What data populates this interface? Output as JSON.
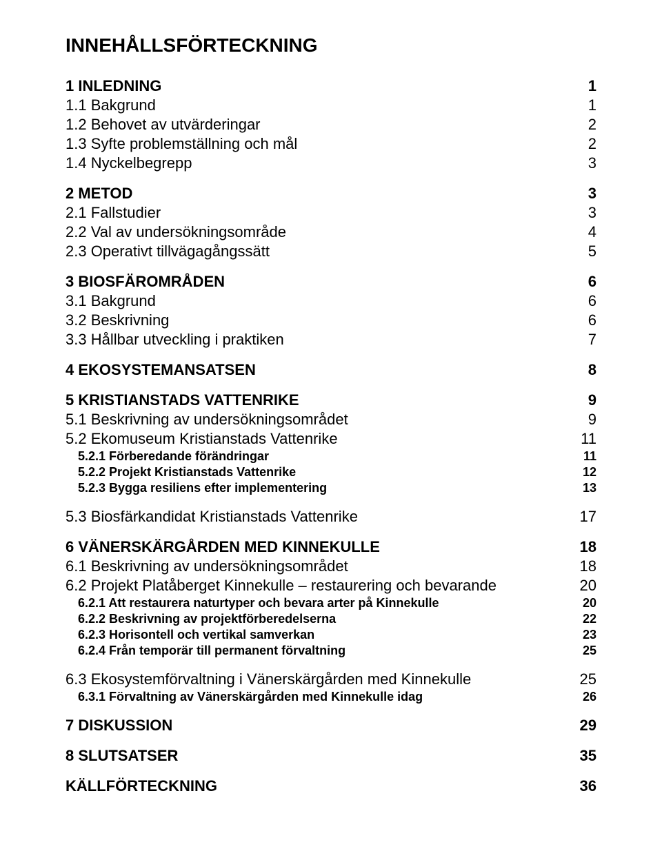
{
  "colors": {
    "text": "#000000",
    "background": "#ffffff"
  },
  "typography": {
    "font_family": "Arial, Helvetica, sans-serif",
    "title_fontsize_pt": 21,
    "lvl1_fontsize_pt": 16,
    "lvl2_fontsize_pt": 16,
    "lvl3_fontsize_pt": 13
  },
  "title": "INNEHÅLLSFÖRTECKNING",
  "entries": [
    {
      "level": 1,
      "label": "1 INLEDNING",
      "page": "1",
      "group_top": true
    },
    {
      "level": 2,
      "label": "1.1 Bakgrund",
      "page": "1"
    },
    {
      "level": 2,
      "label": "1.2 Behovet av utvärderingar",
      "page": "2"
    },
    {
      "level": 2,
      "label": "1.3 Syfte problemställning och mål",
      "page": "2"
    },
    {
      "level": 2,
      "label": "1.4 Nyckelbegrepp",
      "page": "3"
    },
    {
      "level": 1,
      "label": "2 METOD",
      "page": "3",
      "group_top": true
    },
    {
      "level": 2,
      "label": "2.1 Fallstudier",
      "page": "3"
    },
    {
      "level": 2,
      "label": "2.2 Val av undersökningsområde",
      "page": "4"
    },
    {
      "level": 2,
      "label": "2.3 Operativt tillvägagångssätt",
      "page": "5"
    },
    {
      "level": 1,
      "label": "3 BIOSFÄROMRÅDEN",
      "page": "6",
      "group_top": true
    },
    {
      "level": 2,
      "label": "3.1 Bakgrund",
      "page": "6"
    },
    {
      "level": 2,
      "label": "3.2 Beskrivning",
      "page": "6"
    },
    {
      "level": 2,
      "label": "3.3 Hållbar utveckling i praktiken",
      "page": "7"
    },
    {
      "level": 1,
      "label": "4 EKOSYSTEMANSATSEN",
      "page": "8",
      "group_top": true
    },
    {
      "level": 1,
      "label": "5 KRISTIANSTADS VATTENRIKE",
      "page": "9",
      "group_top": true
    },
    {
      "level": 2,
      "label": "5.1 Beskrivning av undersökningsområdet",
      "page": "9"
    },
    {
      "level": 2,
      "label": "5.2 Ekomuseum Kristianstads Vattenrike",
      "page": "11"
    },
    {
      "level": 3,
      "label": "5.2.1 Förberedande förändringar",
      "page": "11"
    },
    {
      "level": 3,
      "label": "5.2.2 Projekt Kristianstads Vattenrike",
      "page": "12"
    },
    {
      "level": 3,
      "label": "5.2.3 Bygga resiliens efter implementering",
      "page": "13"
    },
    {
      "level": 2,
      "label": "5.3 Biosfärkandidat Kristianstads Vattenrike",
      "page": "17",
      "group_top": true
    },
    {
      "level": 1,
      "label": "6 VÄNERSKÄRGÅRDEN MED KINNEKULLE",
      "page": "18",
      "group_top": true
    },
    {
      "level": 2,
      "label": "6.1 Beskrivning av undersökningsområdet",
      "page": "18"
    },
    {
      "level": 2,
      "label": "6.2 Projekt Platåberget Kinnekulle – restaurering och bevarande",
      "page": "20"
    },
    {
      "level": 3,
      "label": "6.2.1 Att restaurera naturtyper och bevara arter på Kinnekulle",
      "page": "20"
    },
    {
      "level": 3,
      "label": "6.2.2 Beskrivning av projektförberedelserna",
      "page": "22"
    },
    {
      "level": 3,
      "label": "6.2.3 Horisontell och vertikal samverkan",
      "page": "23"
    },
    {
      "level": 3,
      "label": "6.2.4 Från temporär till permanent förvaltning",
      "page": "25"
    },
    {
      "level": 2,
      "label": "6.3 Ekosystemförvaltning i Vänerskärgården med Kinnekulle",
      "page": "25",
      "group_top": true
    },
    {
      "level": 3,
      "label": "6.3.1 Förvaltning av Vänerskärgården med Kinnekulle idag",
      "page": "26"
    },
    {
      "level": 1,
      "label": "7 DISKUSSION",
      "page": "29",
      "group_top": true
    },
    {
      "level": 1,
      "label": "8 SLUTSATSER",
      "page": "35",
      "group_top": true
    },
    {
      "level": 1,
      "label": "KÄLLFÖRTECKNING",
      "page": "36",
      "group_top": true
    }
  ]
}
